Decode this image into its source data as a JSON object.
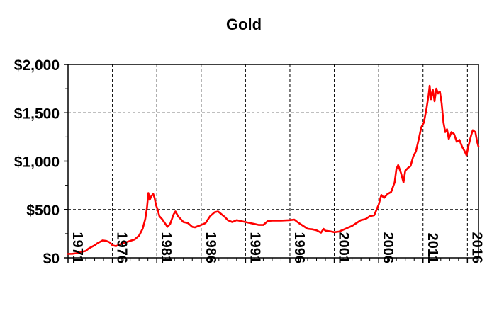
{
  "chart_data": {
    "type": "line",
    "title": "Gold",
    "xlabel": "",
    "ylabel": "",
    "xlim": [
      1971,
      2017.25
    ],
    "ylim": [
      0,
      2000
    ],
    "grid": true,
    "legend": "none",
    "line_color": "#ff0000",
    "yticks": [
      0,
      500,
      1000,
      1500,
      2000
    ],
    "ytick_labels": [
      "$0",
      "$500",
      "$1,000",
      "$1,500",
      "$2,000"
    ],
    "xticks": [
      1971,
      1976,
      1981,
      1986,
      1991,
      1996,
      2001,
      2006,
      2011,
      2016
    ],
    "xtick_labels": [
      "1971",
      "1976",
      "1981",
      "1986",
      "1991",
      "1996",
      "2001",
      "2006",
      "2011",
      "2016"
    ],
    "series": [
      {
        "x": [
          1971.0,
          1971.5,
          1972.0,
          1972.5,
          1973.0,
          1973.3,
          1973.6,
          1974.0,
          1974.3,
          1974.6,
          1974.9,
          1975.3,
          1975.7,
          1976.0,
          1976.4,
          1976.7,
          1977.0,
          1977.5,
          1978.0,
          1978.5,
          1979.0,
          1979.4,
          1979.7,
          1979.9,
          1980.05,
          1980.2,
          1980.4,
          1980.6,
          1980.75,
          1980.9,
          1981.1,
          1981.3,
          1981.6,
          1981.9,
          1982.2,
          1982.5,
          1982.9,
          1983.1,
          1983.4,
          1983.7,
          1984.0,
          1984.5,
          1985.0,
          1985.3,
          1985.7,
          1986.0,
          1986.5,
          1987.0,
          1987.5,
          1987.9,
          1988.3,
          1988.7,
          1989.0,
          1989.5,
          1990.0,
          1990.5,
          1991.0,
          1991.5,
          1992.0,
          1992.5,
          1993.0,
          1993.5,
          1994.0,
          1995.0,
          1996.0,
          1996.5,
          1997.0,
          1997.5,
          1998.0,
          1998.5,
          1999.0,
          1999.5,
          1999.8,
          2000.0,
          2000.5,
          2001.0,
          2001.5,
          2002.0,
          2002.5,
          2003.0,
          2003.5,
          2004.0,
          2004.5,
          2005.0,
          2005.5,
          2006.0,
          2006.3,
          2006.6,
          2007.0,
          2007.4,
          2007.8,
          2008.0,
          2008.2,
          2008.5,
          2008.8,
          2009.0,
          2009.3,
          2009.6,
          2009.9,
          2010.2,
          2010.5,
          2010.8,
          2011.1,
          2011.4,
          2011.65,
          2011.75,
          2011.9,
          2012.1,
          2012.3,
          2012.5,
          2012.7,
          2012.9,
          2013.1,
          2013.3,
          2013.5,
          2013.7,
          2013.9,
          2014.2,
          2014.5,
          2014.8,
          2015.1,
          2015.4,
          2015.7,
          2015.9,
          2016.1,
          2016.4,
          2016.6,
          2016.9,
          2017.1,
          2017.25
        ],
        "y": [
          40,
          42,
          48,
          62,
          70,
          95,
          110,
          130,
          150,
          165,
          180,
          175,
          160,
          130,
          120,
          135,
          145,
          160,
          175,
          190,
          230,
          300,
          400,
          520,
          670,
          600,
          640,
          660,
          620,
          550,
          500,
          430,
          400,
          360,
          320,
          350,
          450,
          480,
          430,
          400,
          370,
          360,
          320,
          315,
          330,
          340,
          360,
          430,
          470,
          480,
          450,
          420,
          390,
          370,
          390,
          380,
          370,
          360,
          350,
          340,
          340,
          380,
          385,
          385,
          390,
          395,
          360,
          330,
          300,
          295,
          285,
          260,
          300,
          280,
          275,
          265,
          270,
          290,
          310,
          330,
          360,
          390,
          400,
          430,
          440,
          550,
          650,
          620,
          660,
          680,
          780,
          920,
          960,
          880,
          780,
          900,
          930,
          950,
          1050,
          1100,
          1220,
          1350,
          1400,
          1550,
          1700,
          1780,
          1640,
          1740,
          1620,
          1750,
          1700,
          1720,
          1600,
          1400,
          1300,
          1330,
          1230,
          1300,
          1280,
          1200,
          1220,
          1150,
          1100,
          1060,
          1150,
          1260,
          1320,
          1300,
          1200,
          1150
        ]
      }
    ]
  }
}
